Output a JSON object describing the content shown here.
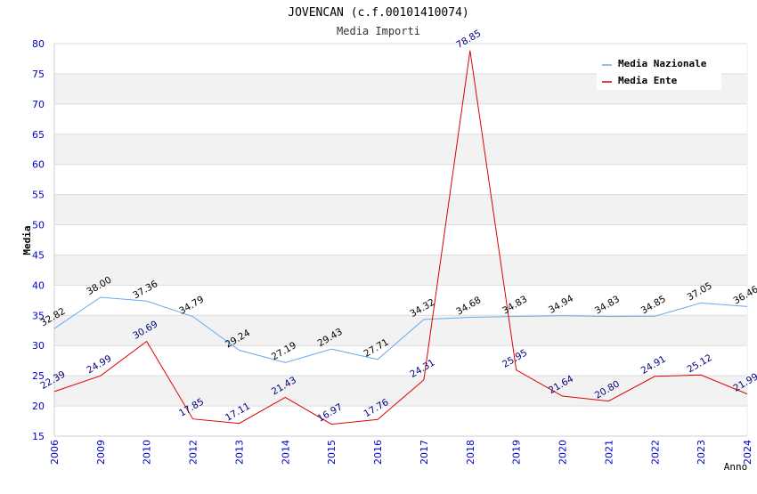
{
  "chart_data": {
    "type": "line",
    "title": "JOVENCAN (c.f.00101410074)",
    "subtitle": "Media Importi",
    "xlabel": "Anno",
    "ylabel": "Media",
    "ylim": [
      15,
      80
    ],
    "yticks": [
      15,
      20,
      25,
      30,
      35,
      40,
      45,
      50,
      55,
      60,
      65,
      70,
      75,
      80
    ],
    "categories": [
      "2006",
      "2009",
      "2010",
      "2012",
      "2013",
      "2014",
      "2015",
      "2016",
      "2017",
      "2018",
      "2019",
      "2020",
      "2021",
      "2022",
      "2023",
      "2024"
    ],
    "series": [
      {
        "name": "Media Nazionale",
        "color": "#66aaee",
        "label_color": "#000000",
        "values": [
          32.82,
          38.0,
          37.36,
          34.79,
          29.24,
          27.19,
          29.43,
          27.71,
          34.32,
          34.68,
          34.83,
          34.94,
          34.83,
          34.85,
          37.05,
          36.46
        ],
        "labels": [
          "32.82",
          "38.00",
          "37.36",
          "34.79",
          "29.24",
          "27.19",
          "29.43",
          "27.71",
          "34.32",
          "34.68",
          "34.83",
          "34.94",
          "34.83",
          "34.85",
          "37.05",
          "36.46"
        ]
      },
      {
        "name": "Media Ente",
        "color": "#dd0000",
        "label_color": "#000080",
        "values": [
          22.39,
          24.99,
          30.69,
          17.85,
          17.11,
          21.43,
          16.97,
          17.76,
          24.31,
          78.85,
          25.95,
          21.64,
          20.8,
          24.91,
          25.12,
          21.99
        ],
        "labels": [
          "22.39",
          "24.99",
          "30.69",
          "17.85",
          "17.11",
          "21.43",
          "16.97",
          "17.76",
          "24.31",
          "78.85",
          "25.95",
          "21.64",
          "20.80",
          "24.91",
          "25.12",
          "21.99"
        ]
      }
    ],
    "grid": "horizontal alternating bands",
    "legend_position": "top-right"
  }
}
